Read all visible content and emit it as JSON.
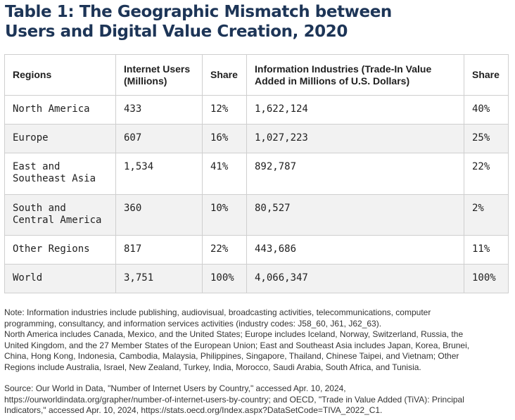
{
  "title": {
    "line1": "Table 1: The Geographic Mismatch between",
    "line2": "Users and Digital Value Creation, 2020"
  },
  "table": {
    "headers": {
      "regions": "Regions",
      "users_1": "Internet Users",
      "users_2": "(Millions)",
      "share_users": "Share",
      "info_1": "Information Industries (Trade-In Value",
      "info_2": "Added in Millions of U.S. Dollars)",
      "share_info": "Share"
    },
    "rows": [
      {
        "region_1": "North America",
        "region_2": "",
        "users": "433",
        "share_users": "12%",
        "info": "1,622,124",
        "share_info": "40%"
      },
      {
        "region_1": "Europe",
        "region_2": "",
        "users": "607",
        "share_users": "16%",
        "info": "1,027,223",
        "share_info": "25%"
      },
      {
        "region_1": "East and",
        "region_2": "Southeast Asia",
        "users": "1,534",
        "share_users": "41%",
        "info": "892,787",
        "share_info": "22%"
      },
      {
        "region_1": "South and",
        "region_2": "Central America",
        "users": "360",
        "share_users": "10%",
        "info": "80,527",
        "share_info": "2%"
      },
      {
        "region_1": "Other Regions",
        "region_2": "",
        "users": "817",
        "share_users": "22%",
        "info": "443,686",
        "share_info": "11%"
      },
      {
        "region_1": "World",
        "region_2": "",
        "users": "3,751",
        "share_users": "100%",
        "info": "4,066,347",
        "share_info": "100%"
      }
    ]
  },
  "notes": {
    "note_1": "Note: Information industries include publishing, audiovisual, broadcasting activities, telecommunications, computer",
    "note_2": "programming, consultancy, and information services activities (industry codes: J58_60, J61, J62_63).",
    "note_3": "North America includes Canada, Mexico, and the United States; Europe includes Iceland, Norway, Switzerland, Russia, the",
    "note_4": "United Kingdom, and the 27 Member States of the European Union; East and Southeast Asia includes Japan, Korea, Brunei,",
    "note_5": "China, Hong Kong, Indonesia, Cambodia, Malaysia, Philippines, Singapore, Thailand, Chinese Taipei, and Vietnam; Other",
    "note_6": "Regions include Australia, Israel, New Zealand, Turkey, India, Morocco, Saudi Arabia, South Africa, and Tunisia.",
    "source_1": "Source: Our World in Data, \"Number of Internet Users by Country,\" accessed Apr. 10, 2024,",
    "source_2": "https://ourworldindata.org/grapher/number-of-internet-users-by-country; and OECD, \"Trade in Value Added (TiVA): Principal",
    "source_3": "Indicators,\" accessed Apr. 10, 2024, https://stats.oecd.org/Index.aspx?DataSetCode=TIVA_2022_C1."
  }
}
